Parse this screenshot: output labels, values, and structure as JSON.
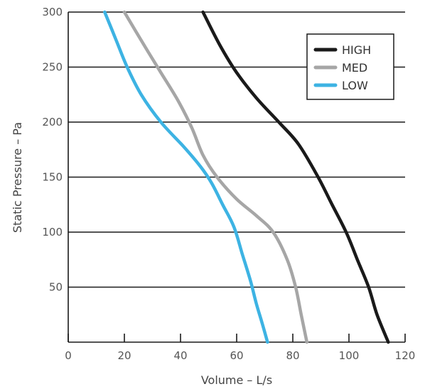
{
  "chart_data": {
    "type": "line",
    "title": "",
    "xlabel": "Volume – L/s",
    "ylabel": "Static Pressure – Pa",
    "xlim": [
      0,
      120
    ],
    "ylim": [
      0,
      300
    ],
    "x_ticks": [
      "0",
      "20",
      "40",
      "60",
      "80",
      "100",
      "120"
    ],
    "y_ticks": [
      "50",
      "100",
      "150",
      "200",
      "250",
      "300"
    ],
    "grid": "horizontal",
    "legend_position": "top-right",
    "series": [
      {
        "name": "HIGH",
        "color": "#1a1a1a",
        "points": [
          [
            48,
            300
          ],
          [
            54,
            270
          ],
          [
            60,
            245
          ],
          [
            67,
            222
          ],
          [
            75,
            200
          ],
          [
            82,
            180
          ],
          [
            89,
            150
          ],
          [
            94,
            125
          ],
          [
            99,
            100
          ],
          [
            103,
            75
          ],
          [
            107,
            50
          ],
          [
            110,
            25
          ],
          [
            114,
            0
          ]
        ]
      },
      {
        "name": "MED",
        "color": "#a6a6a6",
        "points": [
          [
            20,
            300
          ],
          [
            27,
            270
          ],
          [
            33,
            245
          ],
          [
            39,
            220
          ],
          [
            44,
            195
          ],
          [
            48,
            170
          ],
          [
            53,
            150
          ],
          [
            60,
            130
          ],
          [
            67,
            115
          ],
          [
            73,
            100
          ],
          [
            78,
            75
          ],
          [
            81,
            50
          ],
          [
            83,
            25
          ],
          [
            85,
            0
          ]
        ]
      },
      {
        "name": "LOW",
        "color": "#3db3e3",
        "points": [
          [
            13,
            300
          ],
          [
            17,
            275
          ],
          [
            21,
            250
          ],
          [
            26,
            225
          ],
          [
            33,
            200
          ],
          [
            41,
            178
          ],
          [
            47,
            160
          ],
          [
            51,
            145
          ],
          [
            55,
            125
          ],
          [
            59,
            105
          ],
          [
            62,
            80
          ],
          [
            65,
            55
          ],
          [
            67,
            35
          ],
          [
            69,
            18
          ],
          [
            71,
            0
          ]
        ]
      }
    ]
  }
}
